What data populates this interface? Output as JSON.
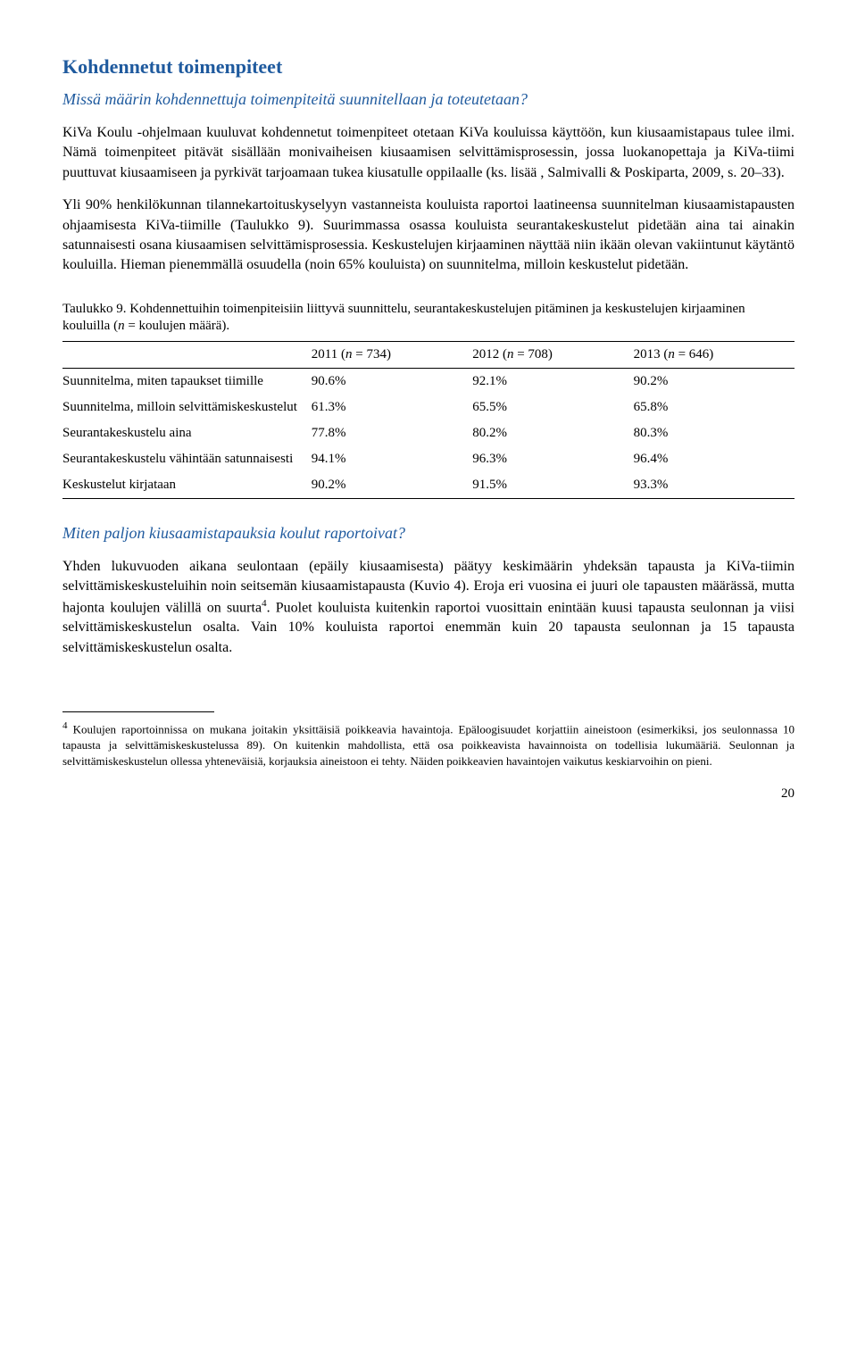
{
  "heading": "Kohdennetut toimenpiteet",
  "subheading": "Missä määrin kohdennettuja toimenpiteitä suunnitellaan ja toteutetaan?",
  "para1": "KiVa Koulu -ohjelmaan kuuluvat kohdennetut toimenpiteet otetaan KiVa kouluissa käyttöön, kun kiusaamistapaus tulee ilmi. Nämä toimenpiteet pitävät sisällään monivaiheisen kiusaamisen selvittämisprosessin, jossa luokanopettaja ja KiVa-tiimi puuttuvat kiusaamiseen ja pyrkivät tarjoamaan tukea kiusatulle oppilaalle (ks. lisää , Salmivalli & Poskiparta, 2009, s. 20–33).",
  "para2": "Yli 90% henkilökunnan tilannekartoituskyselyyn vastanneista kouluista raportoi laatineensa suunnitelman kiusaamistapausten ohjaamisesta KiVa-tiimille (Taulukko 9). Suurimmassa osassa kouluista seurantakeskustelut pidetään aina tai ainakin satunnaisesti osana kiusaamisen selvittämisprosessia. Keskustelujen kirjaaminen näyttää niin ikään olevan vakiintunut käytäntö kouluilla. Hieman pienemmällä osuudella (noin 65% kouluista) on suunnitelma, milloin keskustelut pidetään.",
  "table": {
    "caption_prefix": "Taulukko 9. Kohdennettuihin toimenpiteisiin liittyvä suunnittelu, seurantakeskustelujen pitäminen ja keskustelujen kirjaaminen kouluilla (",
    "caption_n": "n",
    "caption_suffix": " = koulujen määrä).",
    "headers": {
      "y1_pre": "2011 (",
      "y1_n": "n",
      "y1_post": " = 734)",
      "y2_pre": "2012 (",
      "y2_n": "n",
      "y2_post": " = 708)",
      "y3_pre": "2013 (",
      "y3_n": "n",
      "y3_post": " = 646)"
    },
    "rows": [
      {
        "label": "Suunnitelma, miten tapaukset tiimille",
        "y1": "90.6%",
        "y2": "92.1%",
        "y3": "90.2%"
      },
      {
        "label": "Suunnitelma, milloin selvittämiskeskustelut",
        "y1": "61.3%",
        "y2": "65.5%",
        "y3": "65.8%"
      },
      {
        "label": "Seurantakeskustelu aina",
        "y1": "77.8%",
        "y2": "80.2%",
        "y3": "80.3%"
      },
      {
        "label": "Seurantakeskustelu vähintään satunnaisesti",
        "y1": "94.1%",
        "y2": "96.3%",
        "y3": "96.4%"
      },
      {
        "label": "Keskustelut kirjataan",
        "y1": "90.2%",
        "y2": "91.5%",
        "y3": "93.3%"
      }
    ]
  },
  "subheading2": "Miten paljon kiusaamistapauksia koulut raportoivat?",
  "para3_pre": "Yhden lukuvuoden aikana seulontaan (epäily kiusaamisesta) päätyy keskimäärin yhdeksän tapausta ja KiVa-tiimin selvittämiskeskusteluihin noin seitsemän kiusaamistapausta (Kuvio 4). Eroja eri vuosina ei juuri ole tapausten määrässä, mutta hajonta koulujen välillä on suurta",
  "para3_sup": "4",
  "para3_post": ". Puolet kouluista kuitenkin raportoi vuosittain enintään kuusi tapausta seulonnan ja viisi selvittämiskeskustelun osalta. Vain 10% kouluista raportoi enemmän kuin 20 tapausta seulonnan ja 15 tapausta selvittämiskeskustelun osalta.",
  "footnote_sup": "4",
  "footnote": " Koulujen raportoinnissa on mukana joitakin yksittäisiä poikkeavia havaintoja. Epäloogisuudet korjattiin aineistoon (esimerkiksi, jos seulonnassa 10 tapausta ja selvittämiskeskustelussa 89). On kuitenkin mahdollista, että osa poikkeavista havainnoista on todellisia lukumääriä. Seulonnan ja selvittämiskeskustelun ollessa yhteneväisiä, korjauksia aineistoon ei tehty. Näiden poikkeavien havaintojen vaikutus keskiarvoihin on pieni.",
  "page_number": "20"
}
